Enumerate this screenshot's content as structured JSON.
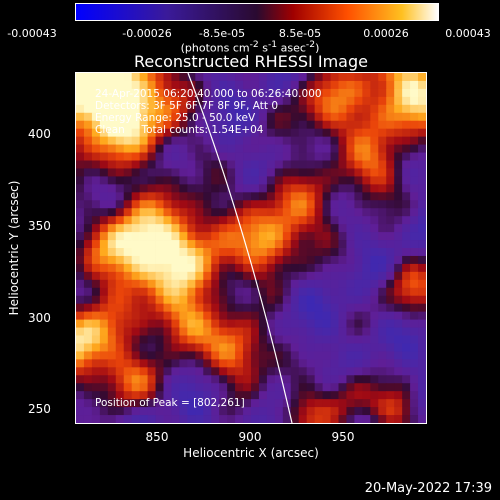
{
  "colorbar": {
    "ticks": [
      "-0.00043",
      "-0.00026",
      "-8.5e-05",
      "8.5e-05",
      "0.00026",
      "0.00043"
    ],
    "units_prefix": "(photons cm",
    "units_sup1": "-2",
    "units_mid1": " s",
    "units_sup2": "-1",
    "units_mid2": " asec",
    "units_sup3": "-2",
    "units_suffix": ")"
  },
  "plot": {
    "title": "Reconstructed RHESSI Image",
    "info_lines": [
      "24-Apr-2015 06:20:40.000 to 06:26:40.000",
      "Detectors: 3F 5F 6F 7F 8F 9F, Att 0",
      "Energy Range: 25.0 - 50.0 keV",
      "Clean     Total counts: 1.54E+04"
    ],
    "peak_label": "Position of Peak = [802,261]",
    "x_title": "Heliocentric X (arcsec)",
    "y_title": "Heliocentric Y (arcsec)",
    "x_ticks": [
      "850",
      "900",
      "950"
    ],
    "y_ticks": [
      "400",
      "350",
      "300",
      "250"
    ]
  },
  "footer": {
    "timestamp": "20-May-2022 17:39"
  }
}
